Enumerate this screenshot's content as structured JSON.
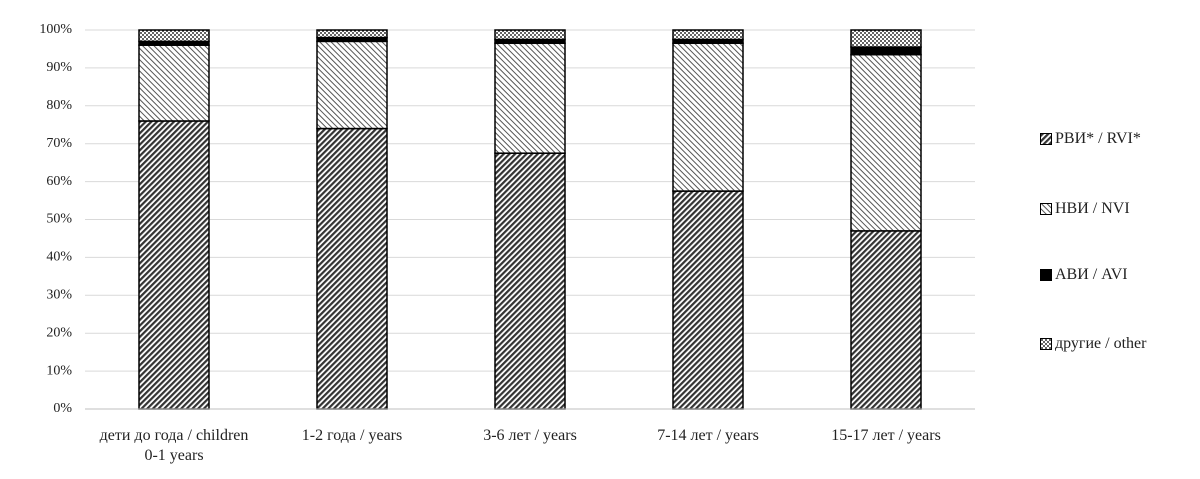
{
  "chart_data": {
    "type": "stacked_bar",
    "categories": [
      "дети до года / children 0-1 years",
      "1-2 года / years",
      "3-6 лет / years",
      "7-14 лет / years",
      "15-17 лет / years"
    ],
    "series": [
      {
        "name": "РВИ* / RVI*",
        "color": "#333333",
        "pattern": "dense-hatch",
        "values": [
          76,
          74,
          67.5,
          57.5,
          47
        ]
      },
      {
        "name": "НВИ / NVI",
        "color": "#555555",
        "pattern": "light-hatch",
        "values": [
          20,
          23,
          29,
          39,
          46.5
        ]
      },
      {
        "name": "АВИ / AVI",
        "color": "#000000",
        "pattern": "solid",
        "values": [
          1,
          1,
          1,
          1,
          2
        ]
      },
      {
        "name": "другие / other",
        "color": "#444444",
        "pattern": "dots",
        "values": [
          3,
          2,
          2.5,
          2.5,
          4.5
        ]
      }
    ],
    "ylim": [
      0,
      100
    ],
    "yticks": [
      {
        "value": 0,
        "label": "0%"
      },
      {
        "value": 10,
        "label": "10%"
      },
      {
        "value": 20,
        "label": "20%"
      },
      {
        "value": 30,
        "label": "30%"
      },
      {
        "value": 40,
        "label": "40%"
      },
      {
        "value": 50,
        "label": "50%"
      },
      {
        "value": 60,
        "label": "60%"
      },
      {
        "value": 70,
        "label": "70%"
      },
      {
        "value": 80,
        "label": "80%"
      },
      {
        "value": 90,
        "label": "90%"
      },
      {
        "value": 100,
        "label": "100%"
      }
    ],
    "grid": true,
    "legend": "right"
  }
}
